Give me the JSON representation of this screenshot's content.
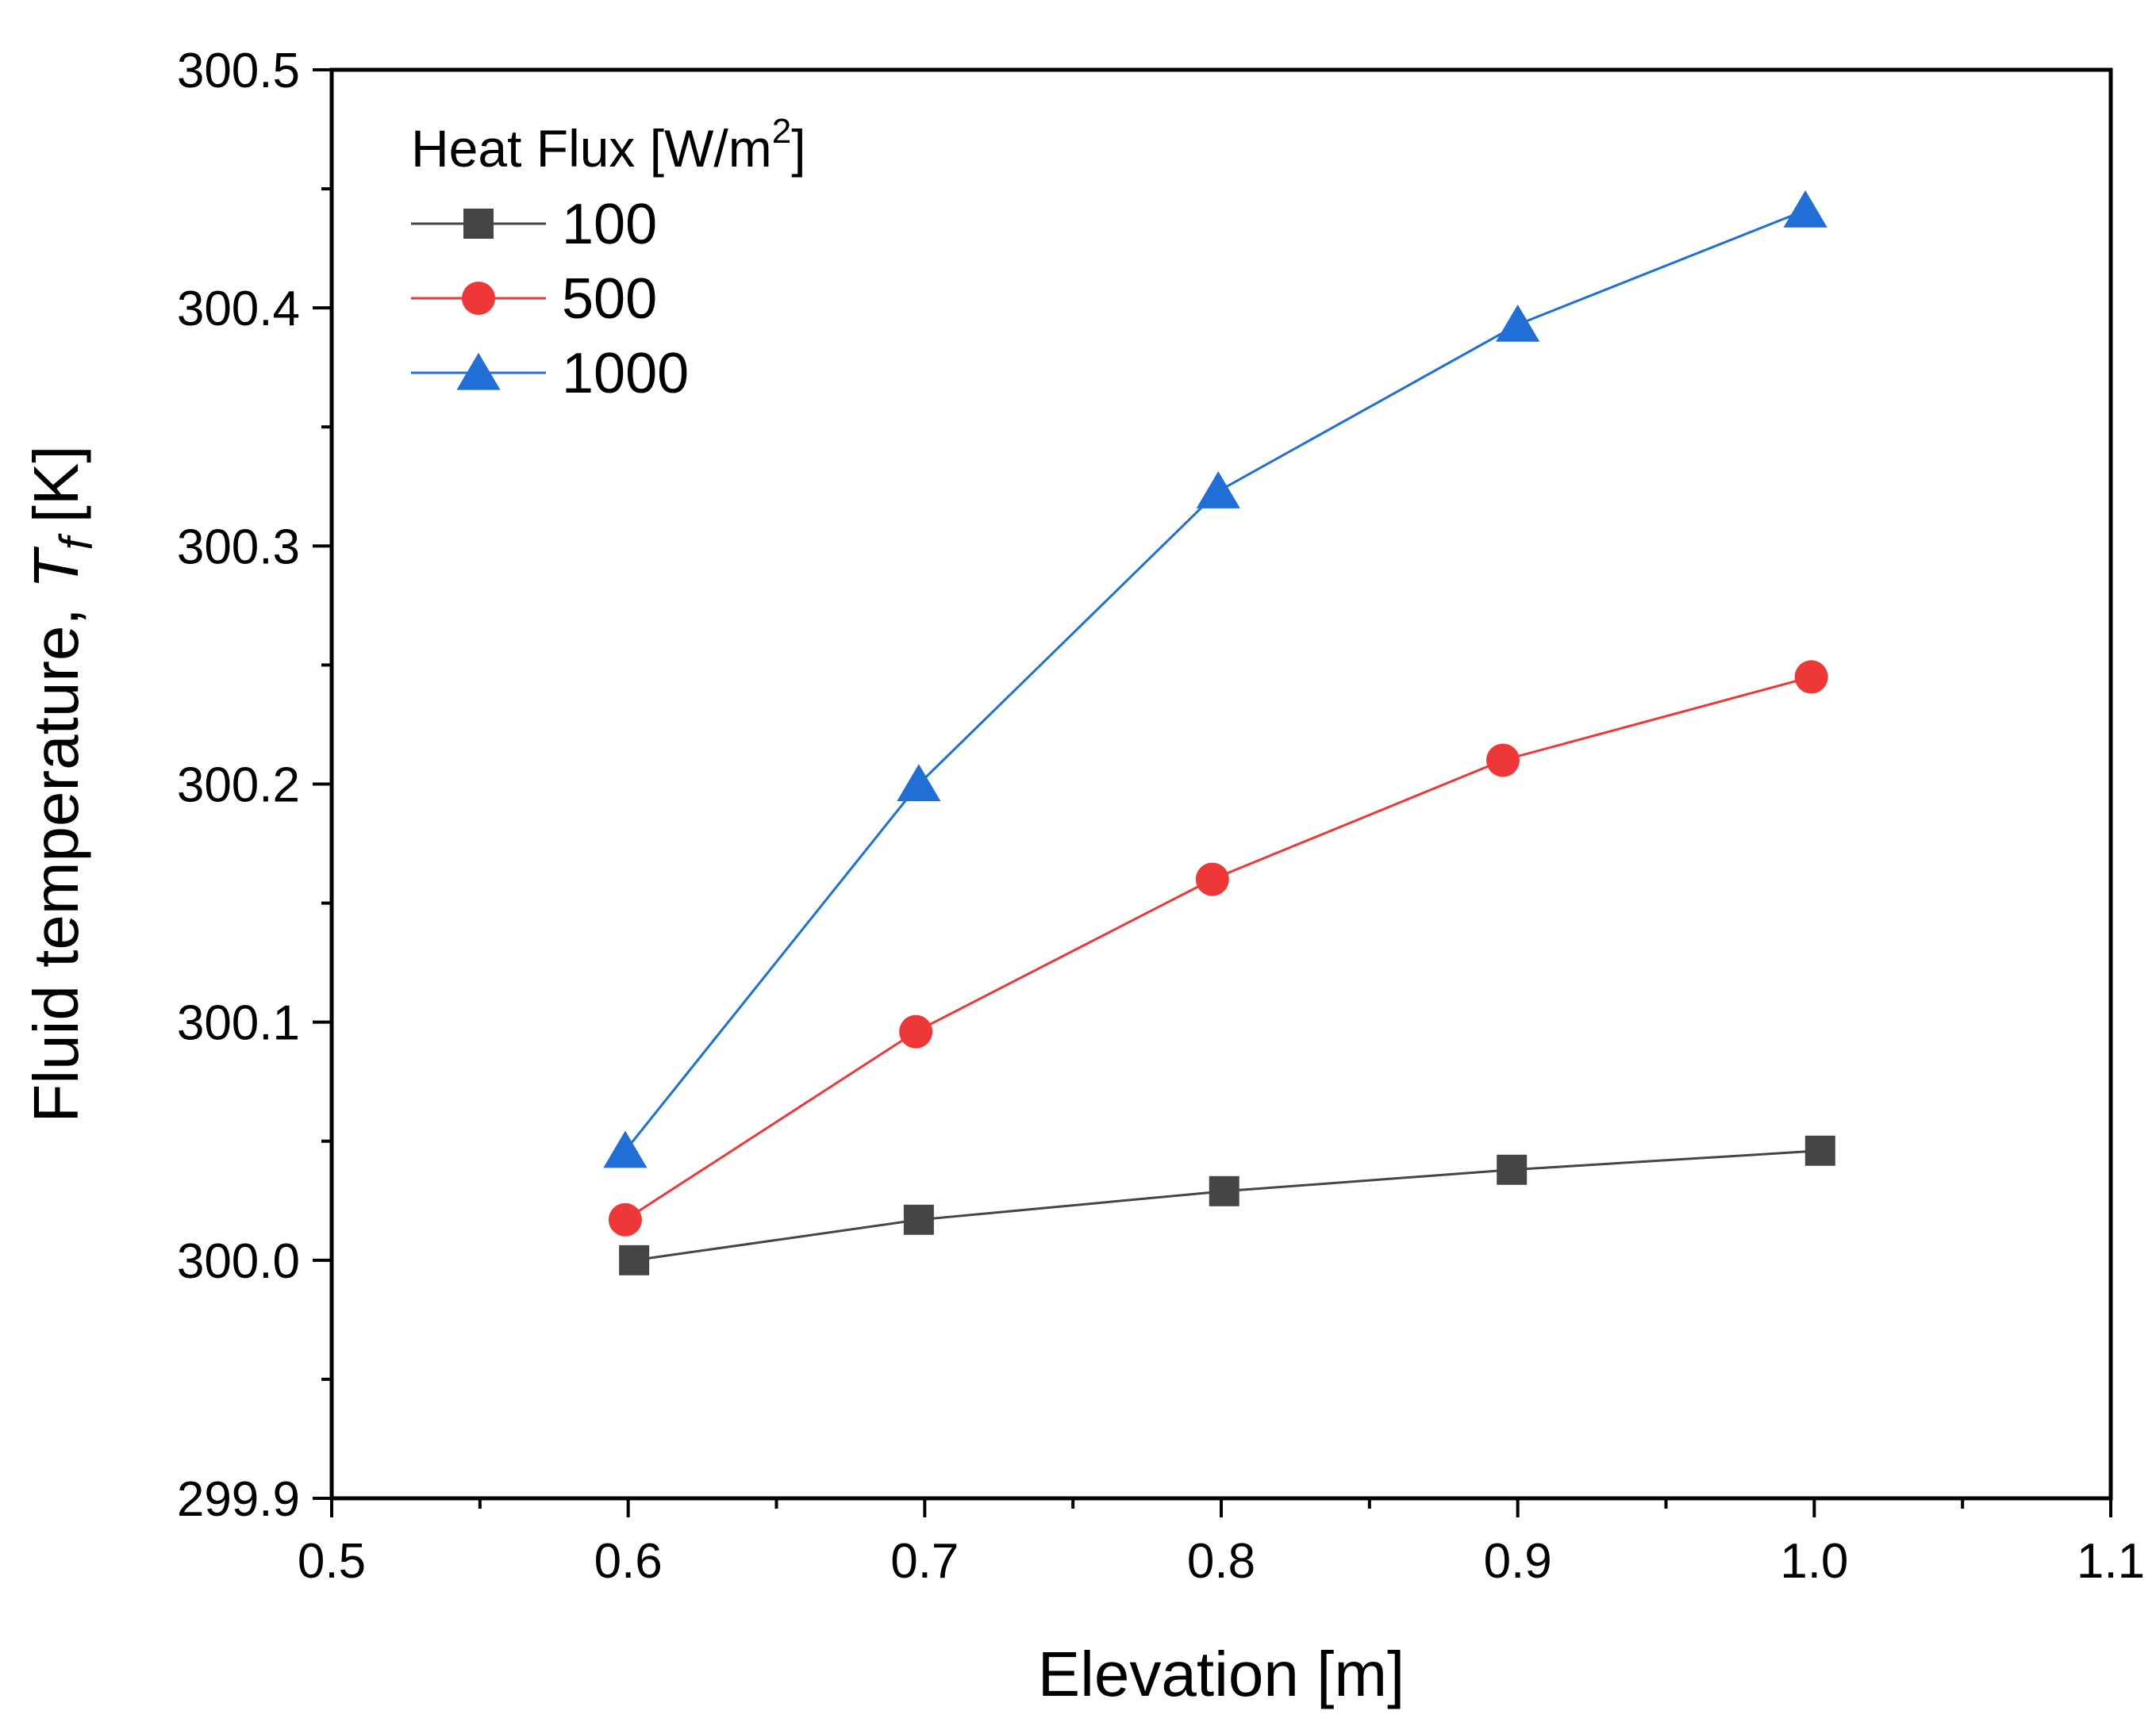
{
  "chart_data": {
    "type": "line",
    "title": "",
    "xlabel": "Elevation [m]",
    "ylabel": {
      "text": "Fluid temperature,",
      "symbol": "T",
      "subscript": "f",
      "unit": "[K]"
    },
    "xlim": [
      0.5,
      1.1
    ],
    "ylim": [
      299.9,
      300.5
    ],
    "x_ticks": [
      "0.5",
      "0.6",
      "0.7",
      "0.8",
      "0.9",
      "1.0",
      "1.1"
    ],
    "x_tick_values": [
      0.5,
      0.6,
      0.7,
      0.8,
      0.9,
      1.0,
      1.1
    ],
    "y_ticks": [
      "299.9",
      "300.0",
      "300.1",
      "300.2",
      "300.3",
      "300.4",
      "300.5"
    ],
    "y_tick_values": [
      299.9,
      300.0,
      300.1,
      300.2,
      300.3,
      300.4,
      300.5
    ],
    "grid": false,
    "legend": {
      "title": "Heat Flux [W/m",
      "title_superscript": "2",
      "title_suffix": "]",
      "position": "top-left"
    },
    "series": [
      {
        "name": "100",
        "marker": "square",
        "color": "#454545",
        "x": [
          0.602,
          0.698,
          0.801,
          0.898,
          1.002
        ],
        "y": [
          300.0,
          300.017,
          300.029,
          300.038,
          300.046
        ]
      },
      {
        "name": "500",
        "marker": "circle",
        "color": "#ee3838",
        "x": [
          0.599,
          0.697,
          0.797,
          0.895,
          0.999
        ],
        "y": [
          300.017,
          300.096,
          300.16,
          300.21,
          300.245
        ]
      },
      {
        "name": "1000",
        "marker": "triangle",
        "color": "#1f6fd6",
        "x": [
          0.599,
          0.698,
          0.799,
          0.9,
          0.997
        ],
        "y": [
          300.046,
          300.2,
          300.323,
          300.393,
          300.441
        ]
      }
    ]
  }
}
